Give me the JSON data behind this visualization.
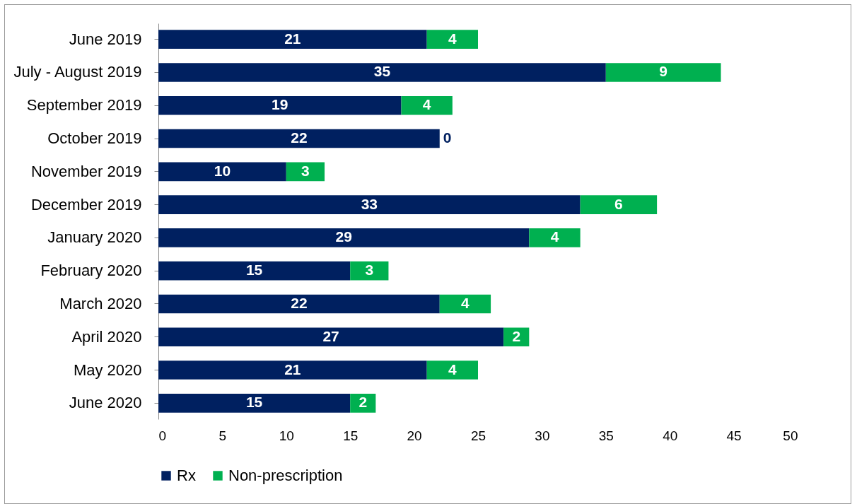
{
  "chart_data": {
    "type": "bar",
    "orientation": "horizontal",
    "stacked": true,
    "data_labels": true,
    "legend": "bottom",
    "grid": false,
    "categories": [
      "June 2019",
      "July - August 2019",
      "September 2019",
      "October 2019",
      "November 2019",
      "December 2019",
      "January 2020",
      "February 2020",
      "March 2020",
      "April 2020",
      "May 2020",
      "June 2020"
    ],
    "series": [
      {
        "name": "Rx",
        "color": "#002060",
        "values": [
          21,
          35,
          19,
          22,
          10,
          33,
          29,
          15,
          22,
          27,
          21,
          15
        ]
      },
      {
        "name": "Non-prescription",
        "color": "#00b050",
        "values": [
          4,
          9,
          4,
          0,
          3,
          6,
          4,
          3,
          4,
          2,
          4,
          2
        ]
      }
    ],
    "xlim": [
      0,
      50
    ],
    "xticks": [
      0,
      5,
      10,
      15,
      20,
      25,
      30,
      35,
      40,
      45,
      50
    ]
  }
}
